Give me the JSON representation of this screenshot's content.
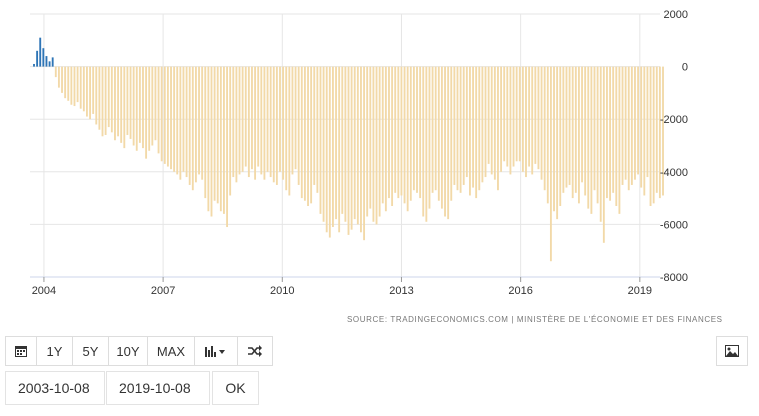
{
  "chart_data": {
    "type": "bar",
    "title": "",
    "xlabel": "",
    "ylabel": "",
    "ylim": [
      -8000,
      2000
    ],
    "yticks": [
      "2000",
      "0",
      "-2000",
      "-4000",
      "-6000",
      "-8000"
    ],
    "xticks": [
      "2004",
      "2007",
      "2010",
      "2013",
      "2016",
      "2019"
    ],
    "grid": true,
    "colors": {
      "positive": "#2e75b6",
      "negative": "#f2d9a8"
    },
    "x_start": "2003-10",
    "x_end": "2019-08",
    "values": [
      100,
      600,
      1100,
      700,
      400,
      200,
      350,
      -400,
      -800,
      -1000,
      -1200,
      -1300,
      -1450,
      -1500,
      -1350,
      -1600,
      -1700,
      -1900,
      -2000,
      -1800,
      -2200,
      -2400,
      -2650,
      -2600,
      -2300,
      -2500,
      -2800,
      -2650,
      -2900,
      -3100,
      -2600,
      -2750,
      -3000,
      -3200,
      -2900,
      -3100,
      -3500,
      -3200,
      -3000,
      -2800,
      -3300,
      -3600,
      -3700,
      -3800,
      -3900,
      -4000,
      -4100,
      -4300,
      -4000,
      -4200,
      -4500,
      -4700,
      -4400,
      -4100,
      -4300,
      -5000,
      -5500,
      -5700,
      -5100,
      -5200,
      -5500,
      -5600,
      -6100,
      -4900,
      -4200,
      -4400,
      -4100,
      -4000,
      -3800,
      -4200,
      -3900,
      -4300,
      -3800,
      -4100,
      -4300,
      -4000,
      -4200,
      -4400,
      -4500,
      -4000,
      -4300,
      -4700,
      -4900,
      -4100,
      -3900,
      -4500,
      -5000,
      -5100,
      -5300,
      -5200,
      -4500,
      -4800,
      -5600,
      -5900,
      -6300,
      -6500,
      -6100,
      -5800,
      -6300,
      -5600,
      -5900,
      -6400,
      -6200,
      -5800,
      -6000,
      -6300,
      -6600,
      -5700,
      -5400,
      -5900,
      -6000,
      -5700,
      -5200,
      -5500,
      -5000,
      -5300,
      -4800,
      -5000,
      -4900,
      -5200,
      -5500,
      -5100,
      -4700,
      -4800,
      -5000,
      -5700,
      -5900,
      -5400,
      -4800,
      -4700,
      -5100,
      -5400,
      -5700,
      -5800,
      -5100,
      -4500,
      -4700,
      -4800,
      -4500,
      -4200,
      -4900,
      -4600,
      -5000,
      -4700,
      -4400,
      -4200,
      -3700,
      -4100,
      -4300,
      -4700,
      -4000,
      -3600,
      -3800,
      -4100,
      -3800,
      -3600,
      -3600,
      -4000,
      -4200,
      -3800,
      -4100,
      -3700,
      -3900,
      -4300,
      -4700,
      -5200,
      -7400,
      -5500,
      -5800,
      -5300,
      -4800,
      -4600,
      -4500,
      -5000,
      -4800,
      -5200,
      -4400,
      -4900,
      -5400,
      -5600,
      -4700,
      -5200,
      -5900,
      -6700,
      -5000,
      -5100,
      -4800,
      -5300,
      -5600,
      -4500,
      -4300,
      -4700,
      -4500,
      -4300,
      -4100,
      -4600,
      -4900,
      -4200,
      -5300,
      -5200,
      -4800,
      -5000,
      -4900
    ]
  },
  "source": {
    "text": "SOURCE: TRADINGECONOMICS.COM | MINISTÈRE DE L'ÉCONOMIE ET DES FINANCES"
  },
  "toolbar": {
    "calendar_icon": "calendar-icon",
    "b1": "1Y",
    "b2": "5Y",
    "b3": "10Y",
    "b4": "MAX",
    "chart_type_icon": "bar-chart-icon",
    "shuffle_icon": "shuffle-icon",
    "image_icon": "image-icon"
  },
  "dates": {
    "start": "2003-10-08",
    "end": "2019-10-08",
    "ok": "OK"
  }
}
